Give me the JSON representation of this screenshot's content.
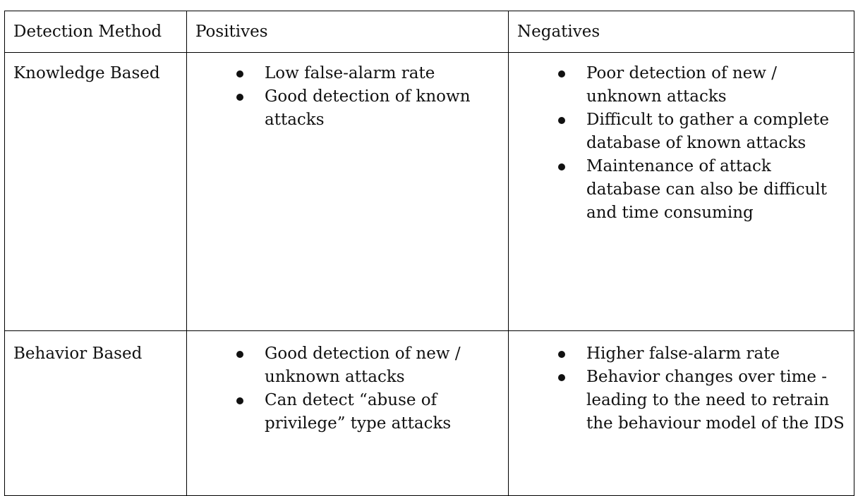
{
  "table": {
    "headers": [
      "Detection Method",
      "Positives",
      "Negatives"
    ],
    "rows": [
      {
        "method": "Knowledge Based",
        "positives": [
          "Low false-alarm rate",
          "Good detection of known attacks"
        ],
        "negatives": [
          "Poor detection of new / unknown attacks",
          "Difficult to gather a complete database of known attacks",
          "Maintenance of attack database can also be difficult and time consuming"
        ]
      },
      {
        "method": "Behavior Based",
        "positives": [
          "Good detection of new / unknown attacks",
          "Can detect “abuse of privilege” type attacks"
        ],
        "negatives": [
          "Higher false-alarm rate",
          "Behavior changes over time - leading to the need to retrain the behaviour model of the IDS"
        ]
      }
    ]
  }
}
